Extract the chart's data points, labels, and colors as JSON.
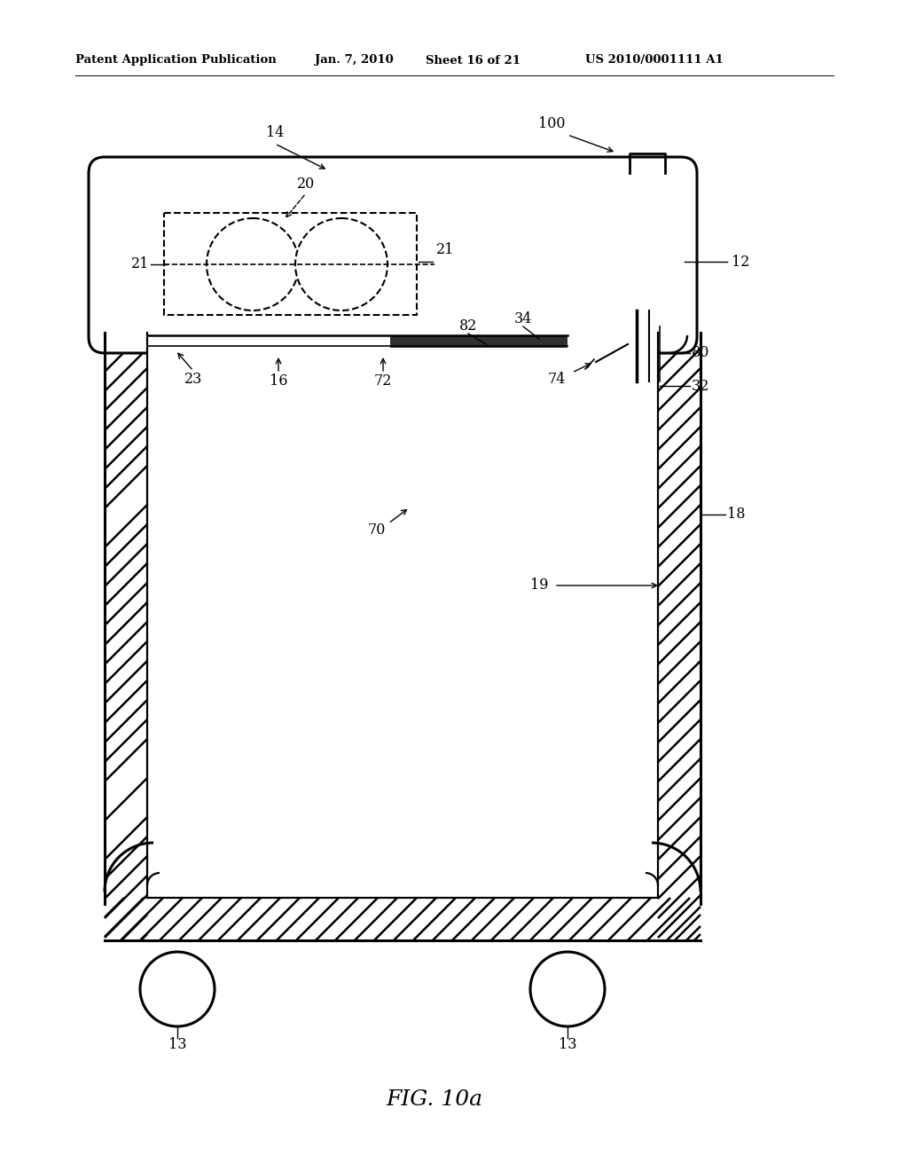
{
  "bg_color": "#ffffff",
  "header_left": "Patent Application Publication",
  "header_date": "Jan. 7, 2010",
  "header_sheet": "Sheet 16 of 21",
  "header_patent": "US 2010/0001111 A1",
  "fig_label": "FIG. 10a",
  "lc": "#000000"
}
